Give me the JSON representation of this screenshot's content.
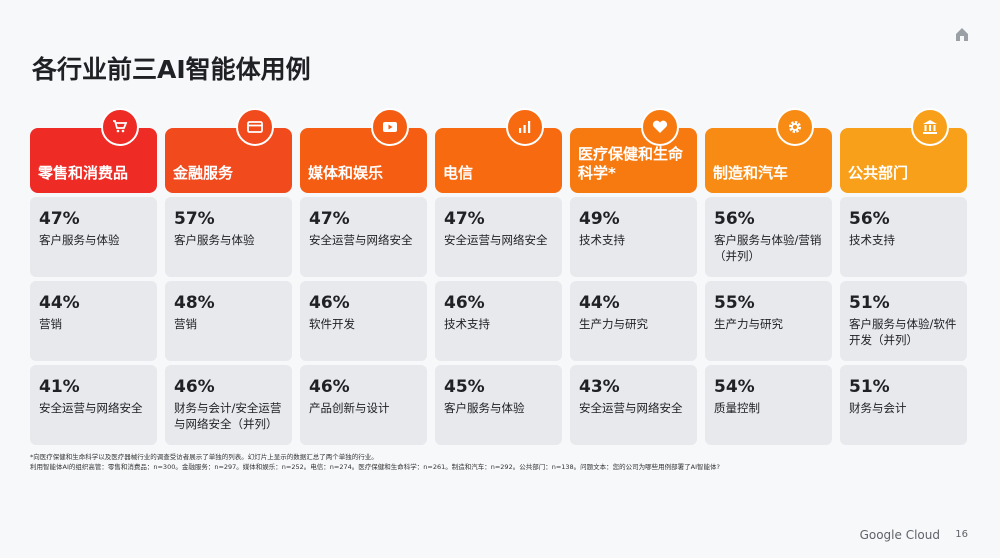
{
  "title": "各行业前三AI智能体用例",
  "columns": [
    {
      "name": "零售和消费品",
      "icon": "shopping-cart-icon",
      "color": "#ee2b25",
      "items": [
        {
          "pct": "47%",
          "label": "客户服务与体验"
        },
        {
          "pct": "44%",
          "label": "营销"
        },
        {
          "pct": "41%",
          "label": "安全运营与网络安全"
        }
      ]
    },
    {
      "name": "金融服务",
      "icon": "credit-card-icon",
      "color": "#f04a1d",
      "items": [
        {
          "pct": "57%",
          "label": "客户服务与体验"
        },
        {
          "pct": "48%",
          "label": "营销"
        },
        {
          "pct": "46%",
          "label": "财务与会计/安全运营与网络安全（并列）"
        }
      ]
    },
    {
      "name": "媒体和娱乐",
      "icon": "video-play-icon",
      "color": "#f55e12",
      "items": [
        {
          "pct": "47%",
          "label": "安全运营与网络安全"
        },
        {
          "pct": "46%",
          "label": "软件开发"
        },
        {
          "pct": "46%",
          "label": "产品创新与设计"
        }
      ]
    },
    {
      "name": "电信",
      "icon": "bar-chart-icon",
      "color": "#f76a10",
      "items": [
        {
          "pct": "47%",
          "label": "安全运营与网络安全"
        },
        {
          "pct": "46%",
          "label": "技术支持"
        },
        {
          "pct": "45%",
          "label": "客户服务与体验"
        }
      ]
    },
    {
      "name": "医疗保健和生命科学*",
      "icon": "heart-icon",
      "color": "#f77a10",
      "items": [
        {
          "pct": "49%",
          "label": "技术支持"
        },
        {
          "pct": "44%",
          "label": "生产力与研究"
        },
        {
          "pct": "43%",
          "label": "安全运营与网络安全"
        }
      ]
    },
    {
      "name": "制造和汽车",
      "icon": "gear-icon",
      "color": "#f88b13",
      "items": [
        {
          "pct": "56%",
          "label": "客户服务与体验/营销（并列）"
        },
        {
          "pct": "55%",
          "label": "生产力与研究"
        },
        {
          "pct": "54%",
          "label": "质量控制"
        }
      ]
    },
    {
      "name": "公共部门",
      "icon": "government-building-icon",
      "color": "#f9a01b",
      "items": [
        {
          "pct": "56%",
          "label": "技术支持"
        },
        {
          "pct": "51%",
          "label": "客户服务与体验/软件开发（并列）"
        },
        {
          "pct": "51%",
          "label": "财务与会计"
        }
      ]
    }
  ],
  "footnote1": "*向医疗保健和生命科学以及医疗器械行业的调查受访者展示了单独的列表。幻灯片上显示的数据汇总了两个单独的行业。",
  "footnote2": "利用智能体AI的组织高管：零售和消费品：n=300。金融服务：n=297。媒体和娱乐：n=252。电信：n=274。医疗保健和生命科学：n=261。制造和汽车：n=292。公共部门：n=138。问题文本：您的公司为哪些用例部署了AI智能体?",
  "brand": "Google Cloud",
  "page": "16"
}
